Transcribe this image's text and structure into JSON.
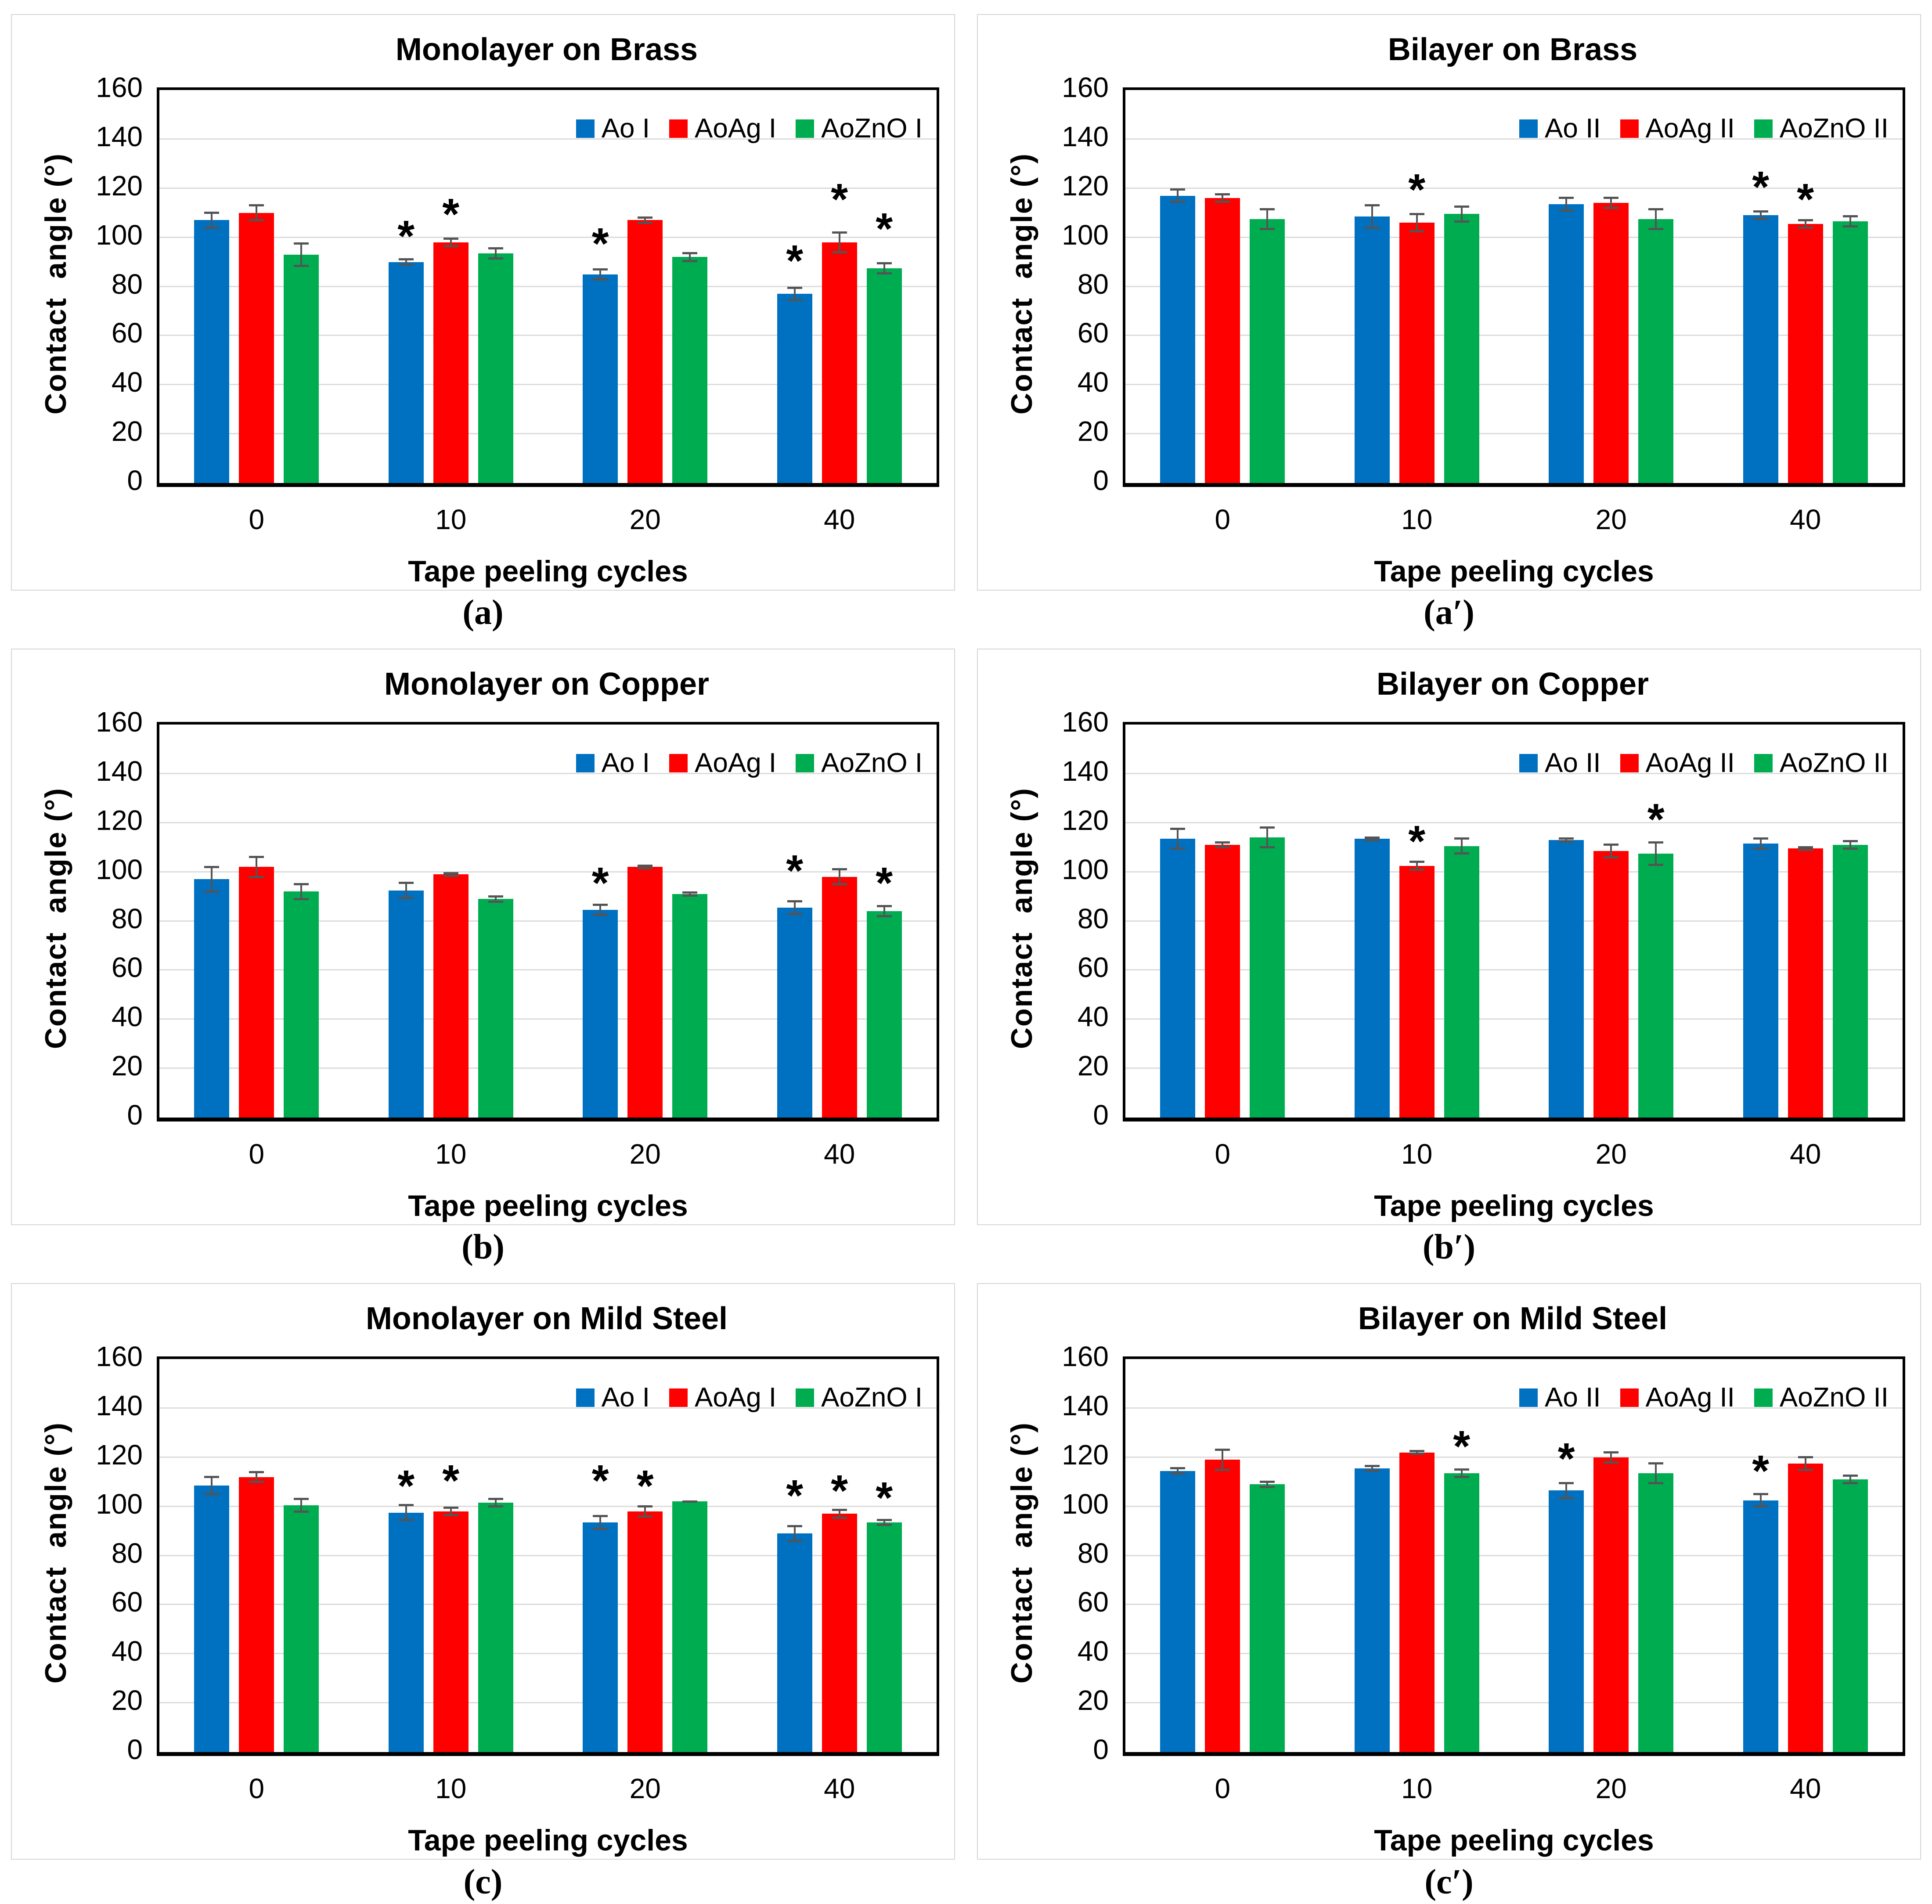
{
  "figure": {
    "significance_marker": "*",
    "colors": {
      "blue": "#0070C0",
      "red": "#FF0000",
      "green": "#00AC50",
      "error_bar": "#545454",
      "gridline": "#DCDCDC",
      "plot_frame": "#000000",
      "panel_border": "#D6D6D6"
    }
  },
  "chart_data": {
    "type": "bar",
    "xlabel": "Tape peeling cycles",
    "ylabel": "Contact  angle (°)",
    "ylim": [
      0,
      160
    ],
    "yticks": [
      0,
      20,
      40,
      60,
      80,
      100,
      120,
      140,
      160
    ],
    "categories": [
      "0",
      "10",
      "20",
      "40"
    ],
    "grid": "horizontal",
    "legend_position": "top-right-inside",
    "panels": [
      {
        "caption": "(a)",
        "title": "Monolayer on Brass",
        "series": [
          {
            "name": "Ao I",
            "color": "blue",
            "values": [
              107,
              90,
              85,
              77
            ],
            "errors": [
              3.5,
              1.5,
              2.5,
              3
            ]
          },
          {
            "name": "AoAg I",
            "color": "red",
            "values": [
              110,
              98,
              107,
              98
            ],
            "errors": [
              3.5,
              2,
              1.5,
              4.5
            ]
          },
          {
            "name": "AoZnO I",
            "color": "green",
            "values": [
              93,
              93.5,
              92,
              87.5
            ],
            "errors": [
              5,
              2.5,
              2,
              2.5
            ]
          }
        ],
        "significance_stars": [
          {
            "category": "10",
            "series": "Ao I",
            "y": 104
          },
          {
            "category": "10",
            "series": "AoAg I",
            "y": 113
          },
          {
            "category": "20",
            "series": "Ao I",
            "y": 101
          },
          {
            "category": "40",
            "series": "Ao I",
            "y": 94
          },
          {
            "category": "40",
            "series": "AoAg I",
            "y": 119
          },
          {
            "category": "40",
            "series": "AoZnO I",
            "y": 107
          }
        ]
      },
      {
        "caption": "(a′)",
        "title": "Bilayer on Brass",
        "series": [
          {
            "name": "Ao II",
            "color": "blue",
            "values": [
              117,
              108.5,
              113.5,
              109
            ],
            "errors": [
              3,
              5,
              3,
              2
            ]
          },
          {
            "name": "AoAg II",
            "color": "red",
            "values": [
              116,
              106,
              114,
              105.5
            ],
            "errors": [
              2,
              4,
              2.5,
              2
            ]
          },
          {
            "name": "AoZnO II",
            "color": "green",
            "values": [
              107.5,
              109.5,
              107.5,
              106.5
            ],
            "errors": [
              4.5,
              3.5,
              4.5,
              2.5
            ]
          }
        ],
        "significance_stars": [
          {
            "category": "10",
            "series": "AoAg II",
            "y": 123
          },
          {
            "category": "40",
            "series": "Ao II",
            "y": 124
          },
          {
            "category": "40",
            "series": "AoAg II",
            "y": 119
          }
        ]
      },
      {
        "caption": "(b)",
        "title": "Monolayer on Copper",
        "series": [
          {
            "name": "Ao I",
            "color": "blue",
            "values": [
              97,
              92.5,
              84.5,
              85.5
            ],
            "errors": [
              5.5,
              3.5,
              2.5,
              3
            ]
          },
          {
            "name": "AoAg I",
            "color": "red",
            "values": [
              102,
              99,
              102,
              98
            ],
            "errors": [
              4.5,
              1,
              1,
              3.5
            ]
          },
          {
            "name": "AoZnO I",
            "color": "green",
            "values": [
              92,
              89,
              91,
              84
            ],
            "errors": [
              3.5,
              1.5,
              1,
              2.5
            ]
          }
        ],
        "significance_stars": [
          {
            "category": "20",
            "series": "Ao I",
            "y": 99
          },
          {
            "category": "40",
            "series": "Ao I",
            "y": 104
          },
          {
            "category": "40",
            "series": "AoZnO I",
            "y": 99
          }
        ]
      },
      {
        "caption": "(b′)",
        "title": "Bilayer on Copper",
        "series": [
          {
            "name": "Ao II",
            "color": "blue",
            "values": [
              113.5,
              113.5,
              113,
              111.5
            ],
            "errors": [
              4.5,
              1,
              1,
              2.5
            ]
          },
          {
            "name": "AoAg II",
            "color": "red",
            "values": [
              111,
              102.5,
              108.5,
              109.5
            ],
            "errors": [
              1.5,
              2,
              3,
              1
            ]
          },
          {
            "name": "AoZnO II",
            "color": "green",
            "values": [
              114,
              110.5,
              107.5,
              111
            ],
            "errors": [
              4.5,
              3.5,
              5,
              2
            ]
          }
        ],
        "significance_stars": [
          {
            "category": "10",
            "series": "AoAg II",
            "y": 116
          },
          {
            "category": "20",
            "series": "AoZnO II",
            "y": 125
          }
        ]
      },
      {
        "caption": "(c)",
        "title": "Monolayer on Mild Steel",
        "series": [
          {
            "name": "Ao I",
            "color": "blue",
            "values": [
              108.5,
              97.5,
              93.5,
              89
            ],
            "errors": [
              4,
              3.5,
              3,
              3.5
            ]
          },
          {
            "name": "AoAg I",
            "color": "red",
            "values": [
              112,
              98,
              98,
              97
            ],
            "errors": [
              2.5,
              2,
              2.5,
              2
            ]
          },
          {
            "name": "AoZnO I",
            "color": "green",
            "values": [
              100.5,
              101.5,
              102,
              93.5
            ],
            "errors": [
              3,
              2,
              0.5,
              1.5
            ]
          }
        ],
        "significance_stars": [
          {
            "category": "10",
            "series": "Ao I",
            "y": 112
          },
          {
            "category": "10",
            "series": "AoAg I",
            "y": 114
          },
          {
            "category": "20",
            "series": "Ao I",
            "y": 114
          },
          {
            "category": "20",
            "series": "AoAg I",
            "y": 112
          },
          {
            "category": "40",
            "series": "Ao I",
            "y": 108
          },
          {
            "category": "40",
            "series": "AoAg I",
            "y": 110
          },
          {
            "category": "40",
            "series": "AoZnO I",
            "y": 107
          }
        ]
      },
      {
        "caption": "(c′)",
        "title": "Bilayer on Mild Steel",
        "series": [
          {
            "name": "Ao II",
            "color": "blue",
            "values": [
              114.5,
              115.5,
              106.5,
              102.5
            ],
            "errors": [
              1.5,
              1.5,
              3.5,
              3
            ]
          },
          {
            "name": "AoAg II",
            "color": "red",
            "values": [
              119,
              122,
              120,
              117.5
            ],
            "errors": [
              4.5,
              1,
              2.5,
              3
            ]
          },
          {
            "name": "AoZnO II",
            "color": "green",
            "values": [
              109,
              113.5,
              113.5,
              111
            ],
            "errors": [
              1.5,
              2,
              4.5,
              2
            ]
          }
        ],
        "significance_stars": [
          {
            "category": "10",
            "series": "AoZnO II",
            "y": 128
          },
          {
            "category": "20",
            "series": "Ao II",
            "y": 123
          },
          {
            "category": "40",
            "series": "Ao II",
            "y": 118
          }
        ]
      }
    ]
  }
}
